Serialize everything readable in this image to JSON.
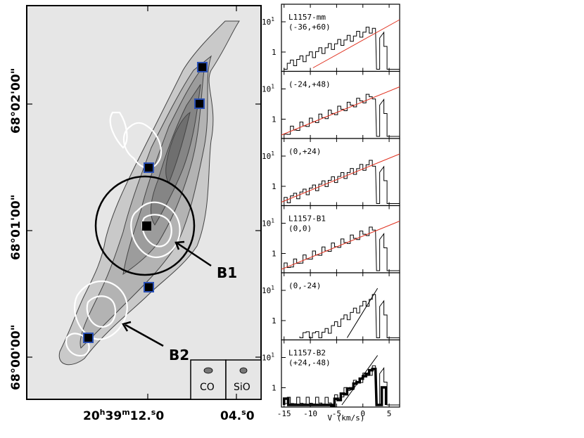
{
  "colors": {
    "background": "#ffffff",
    "map_fill": "#e6e6e6",
    "contour_gray": "#8c8c8c",
    "sio_contour": "#ffffff",
    "marker_fill": "#000000",
    "marker_border": "#2a50b5",
    "fit_line": "#e0301e"
  },
  "map": {
    "dec_ticks": [
      "68°02'00\"",
      "68°01'00\"",
      "68°00'00\""
    ],
    "ra_ticks": [
      "20h39m12.0s",
      "04.0s"
    ],
    "ra_tick_main": "20",
    "ra_tick_h": "h",
    "ra_tick_mid": "39",
    "ra_tick_m": "m",
    "ra_tick_s1": "12.",
    "ra_tick_s_sup": "s",
    "ra_tick_s1_end": "0",
    "ra_tick2": "04.",
    "ra_tick2_end": "0",
    "labels": {
      "b1": "B1",
      "b2": "B2"
    },
    "beams": {
      "co": "CO",
      "sio": "SiO"
    }
  },
  "chart_data": {
    "type": "line",
    "panels": [
      {
        "label_line1": "L1157-mm",
        "label_line2": "(-36,+60)"
      },
      {
        "label_line1": "(-24,+48)",
        "label_line2": ""
      },
      {
        "label_line1": "(0,+24)",
        "label_line2": ""
      },
      {
        "label_line1": "L1157-B1",
        "label_line2": "(0,0)"
      },
      {
        "label_line1": "(0,-24)",
        "label_line2": ""
      },
      {
        "label_line1": "L1157-B2",
        "label_line2": "(+24,-48)"
      }
    ],
    "y_ticks": [
      "10",
      "1"
    ],
    "y_tick_exp": "1",
    "x_ticks": [
      "-15",
      "-10",
      "-5",
      "0",
      "5"
    ],
    "xlabel": "V (km/s)",
    "xlim": [
      -15.5,
      7
    ],
    "yscale": "log"
  }
}
